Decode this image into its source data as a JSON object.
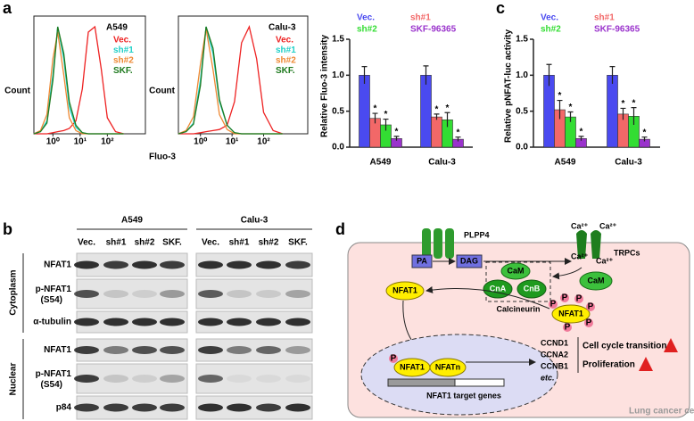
{
  "panel_labels": [
    "a",
    "b",
    "c",
    "d"
  ],
  "chart_data": [
    {
      "type": "hist",
      "title": "A549",
      "xlabel": "Fluo-3",
      "ylabel": "Count",
      "xscale": "log",
      "xlim": [
        0.2,
        2500
      ],
      "ylim": [
        0,
        110
      ],
      "xticks": [
        {
          "value": 1,
          "label": "10⁰"
        },
        {
          "value": 10,
          "label": "10¹"
        },
        {
          "value": 100,
          "label": "10²"
        }
      ],
      "x": [
        0.2,
        0.35,
        0.6,
        1,
        1.5,
        2.5,
        4,
        7,
        12,
        20,
        35,
        60,
        100,
        200,
        400
      ],
      "series": [
        {
          "name": "Vec.",
          "color": "#ee2222",
          "values": [
            0,
            0,
            0,
            1,
            2,
            3,
            5,
            12,
            42,
            95,
            100,
            60,
            15,
            2,
            0
          ]
        },
        {
          "name": "sh#1",
          "color": "#22d0c8",
          "values": [
            0,
            2,
            12,
            55,
            100,
            70,
            25,
            6,
            1,
            0,
            0,
            0,
            0,
            0,
            0
          ]
        },
        {
          "name": "sh#2",
          "color": "#ee8833",
          "values": [
            0,
            3,
            18,
            70,
            95,
            55,
            15,
            3,
            0,
            0,
            0,
            0,
            0,
            0,
            0
          ]
        },
        {
          "name": "SKF.",
          "color": "#1f7a1f",
          "values": [
            0,
            2,
            10,
            50,
            100,
            75,
            30,
            8,
            1,
            0,
            0,
            0,
            0,
            0,
            0
          ]
        }
      ]
    },
    {
      "type": "hist",
      "title": "Calu-3",
      "ylabel": "Count",
      "xscale": "log",
      "xlim": [
        0.2,
        2500
      ],
      "ylim": [
        0,
        110
      ],
      "xticks": [
        {
          "value": 1,
          "label": "10⁰"
        },
        {
          "value": 10,
          "label": "10¹"
        },
        {
          "value": 100,
          "label": "10²"
        }
      ],
      "x": [
        0.2,
        0.35,
        0.6,
        1,
        1.5,
        2.5,
        4,
        7,
        12,
        20,
        35,
        60,
        100,
        200,
        400
      ],
      "series": [
        {
          "name": "Vec.",
          "color": "#ee2222",
          "values": [
            0,
            0,
            0,
            1,
            2,
            3,
            4,
            8,
            30,
            85,
            100,
            70,
            20,
            3,
            0
          ]
        },
        {
          "name": "sh#1",
          "color": "#22d0c8",
          "values": [
            0,
            2,
            10,
            50,
            100,
            75,
            30,
            8,
            1,
            0,
            0,
            0,
            0,
            0,
            0
          ]
        },
        {
          "name": "sh#2",
          "color": "#ee8833",
          "values": [
            0,
            3,
            16,
            65,
            98,
            60,
            18,
            4,
            0,
            0,
            0,
            0,
            0,
            0,
            0
          ]
        },
        {
          "name": "SKF.",
          "color": "#1f7a1f",
          "values": [
            0,
            2,
            9,
            45,
            100,
            80,
            32,
            8,
            1,
            0,
            0,
            0,
            0,
            0,
            0
          ]
        }
      ]
    },
    {
      "type": "bar",
      "ylabel": "Relative Fluo-3 intensity",
      "categories": [
        "A549",
        "Calu-3"
      ],
      "ylim": [
        0,
        1.5
      ],
      "yticks": [
        {
          "value": 0,
          "label": "0.0"
        },
        0.5,
        {
          "value": 1,
          "label": "1.0"
        },
        1.5
      ],
      "series": [
        {
          "name": "Vec.",
          "color": "#4a4af0",
          "values": [
            1.0,
            1.0
          ],
          "errors": [
            0.12,
            0.13
          ]
        },
        {
          "name": "sh#1",
          "color": "#f26868",
          "values": [
            0.4,
            0.42
          ],
          "errors": [
            0.07,
            0.04
          ],
          "marks": [
            "*",
            "*"
          ]
        },
        {
          "name": "sh#2",
          "color": "#33dd33",
          "values": [
            0.31,
            0.38
          ],
          "errors": [
            0.08,
            0.1
          ],
          "marks": [
            "*",
            "*"
          ]
        },
        {
          "name": "SKF-96365",
          "color": "#9a33cc",
          "values": [
            0.12,
            0.11
          ],
          "errors": [
            0.03,
            0.03
          ],
          "marks": [
            "*",
            "*"
          ]
        }
      ]
    },
    {
      "type": "bar",
      "ylabel": "Relative pNFAT-luc activity",
      "categories": [
        "A549",
        "Calu-3"
      ],
      "ylim": [
        0,
        1.5
      ],
      "yticks": [
        {
          "value": 0,
          "label": "0.0"
        },
        0.5,
        {
          "value": 1,
          "label": "1.0"
        },
        1.5
      ],
      "series": [
        {
          "name": "Vec.",
          "color": "#4a4af0",
          "values": [
            1.0,
            1.0
          ],
          "errors": [
            0.15,
            0.12
          ]
        },
        {
          "name": "sh#1",
          "color": "#f26868",
          "values": [
            0.52,
            0.46
          ],
          "errors": [
            0.13,
            0.08
          ],
          "marks": [
            "*",
            "*"
          ]
        },
        {
          "name": "sh#2",
          "color": "#33dd33",
          "values": [
            0.42,
            0.43
          ],
          "errors": [
            0.07,
            0.12
          ],
          "marks": [
            "*",
            "*"
          ]
        },
        {
          "name": "SKF-96365",
          "color": "#9a33cc",
          "values": [
            0.12,
            0.11
          ],
          "errors": [
            0.03,
            0.03
          ],
          "marks": [
            "*",
            "*"
          ]
        }
      ]
    }
  ],
  "blot": {
    "groups": [
      "A549",
      "Calu-3"
    ],
    "lanes": [
      "Vec.",
      "sh#1",
      "sh#2",
      "SKF.",
      "Vec.",
      "sh#1",
      "sh#2",
      "SKF."
    ],
    "sections": [
      "Cytoplasm",
      "Nuclear"
    ],
    "rows": [
      {
        "label": "NFAT1"
      },
      {
        "label": "p-NFAT1",
        "sublabel": "(S54)"
      },
      {
        "label": "α-tubulin"
      },
      {
        "label": "NFAT1"
      },
      {
        "label": "p-NFAT1",
        "sublabel": "(S54)"
      },
      {
        "label": "p84"
      }
    ]
  },
  "diagram": {
    "enzyme": "PLPP4",
    "substrate": "PA",
    "product": "DAG",
    "channel": "TRPCs",
    "ions": [
      "Ca²⁺",
      "Ca²⁺",
      "Ca²⁺",
      "Ca²⁺"
    ],
    "cam": [
      "CaM",
      "CaM"
    ],
    "cna": "CnA",
    "cnb": "CnB",
    "complex": "Calcineurin",
    "nfat": [
      "NFAT1",
      "NFAT1",
      "NFAT1"
    ],
    "partner": "NFATn",
    "phosphates": [
      "P",
      "P",
      "P",
      "P",
      "P",
      "P",
      "P"
    ],
    "targets_label": "NFAT1 target genes",
    "genes": [
      "CCND1",
      "CCNA2",
      "CCNB1",
      "etc."
    ],
    "outcomes": [
      "Cell cycle transition",
      "Proliferation"
    ],
    "cell_label": "Lung cancer cells"
  }
}
